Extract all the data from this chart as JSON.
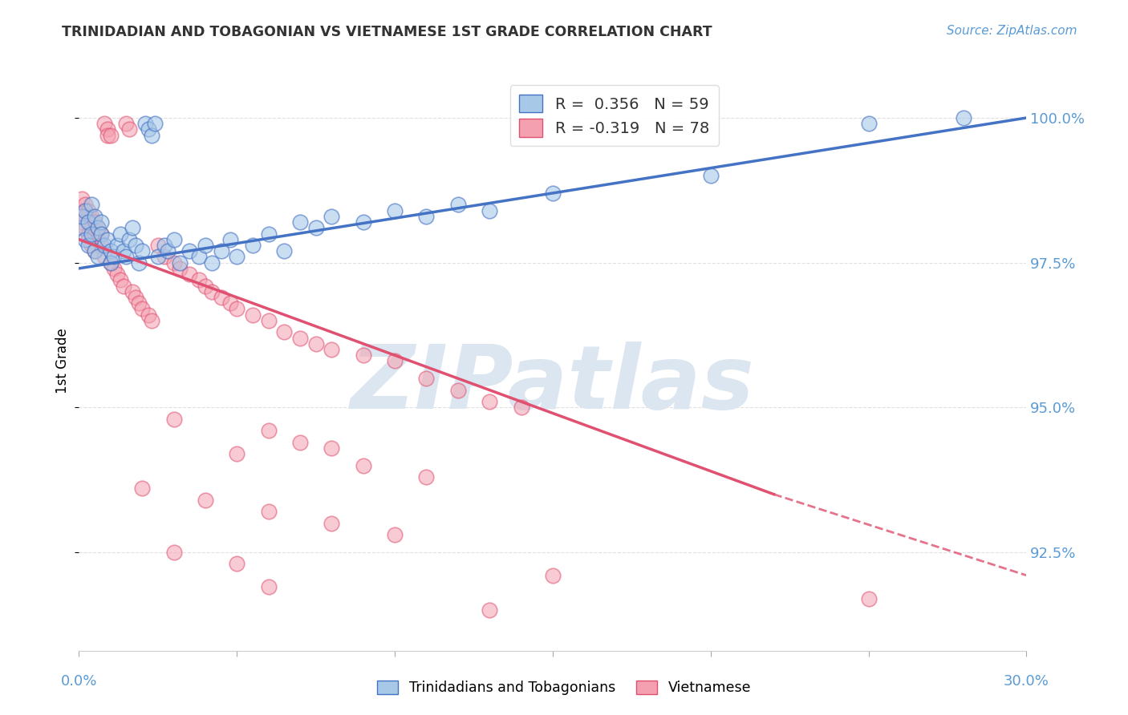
{
  "title": "TRINIDADIAN AND TOBAGONIAN VS VIETNAMESE 1ST GRADE CORRELATION CHART",
  "source": "Source: ZipAtlas.com",
  "ylabel": "1st Grade",
  "ytick_labels": [
    "100.0%",
    "97.5%",
    "95.0%",
    "92.5%"
  ],
  "ytick_values": [
    1.0,
    0.975,
    0.95,
    0.925
  ],
  "xmin": 0.0,
  "xmax": 0.3,
  "ymin": 0.908,
  "ymax": 1.008,
  "legend_blue_r": "R =  0.356",
  "legend_blue_n": "N = 59",
  "legend_pink_r": "R = -0.319",
  "legend_pink_n": "N = 78",
  "color_blue": "#a8c8e8",
  "color_pink": "#f4a0b0",
  "color_line_blue": "#4472c4",
  "color_line_pink": "#e05070",
  "color_axis_labels": "#5b9bd5",
  "color_grid": "#cccccc",
  "color_watermark": "#dce6f0",
  "watermark_text": "ZIPatlas",
  "blue_scatter": [
    [
      0.001,
      0.981
    ],
    [
      0.001,
      0.983
    ],
    [
      0.002,
      0.979
    ],
    [
      0.002,
      0.984
    ],
    [
      0.003,
      0.982
    ],
    [
      0.003,
      0.978
    ],
    [
      0.004,
      0.98
    ],
    [
      0.004,
      0.985
    ],
    [
      0.005,
      0.983
    ],
    [
      0.005,
      0.977
    ],
    [
      0.006,
      0.981
    ],
    [
      0.006,
      0.976
    ],
    [
      0.007,
      0.982
    ],
    [
      0.007,
      0.98
    ],
    [
      0.008,
      0.978
    ],
    [
      0.009,
      0.979
    ],
    [
      0.01,
      0.977
    ],
    [
      0.01,
      0.975
    ],
    [
      0.011,
      0.976
    ],
    [
      0.012,
      0.978
    ],
    [
      0.013,
      0.98
    ],
    [
      0.014,
      0.977
    ],
    [
      0.015,
      0.976
    ],
    [
      0.016,
      0.979
    ],
    [
      0.017,
      0.981
    ],
    [
      0.018,
      0.978
    ],
    [
      0.019,
      0.975
    ],
    [
      0.02,
      0.977
    ],
    [
      0.021,
      0.999
    ],
    [
      0.022,
      0.998
    ],
    [
      0.023,
      0.997
    ],
    [
      0.024,
      0.999
    ],
    [
      0.025,
      0.976
    ],
    [
      0.027,
      0.978
    ],
    [
      0.028,
      0.977
    ],
    [
      0.03,
      0.979
    ],
    [
      0.032,
      0.975
    ],
    [
      0.035,
      0.977
    ],
    [
      0.038,
      0.976
    ],
    [
      0.04,
      0.978
    ],
    [
      0.042,
      0.975
    ],
    [
      0.045,
      0.977
    ],
    [
      0.048,
      0.979
    ],
    [
      0.05,
      0.976
    ],
    [
      0.055,
      0.978
    ],
    [
      0.06,
      0.98
    ],
    [
      0.065,
      0.977
    ],
    [
      0.07,
      0.982
    ],
    [
      0.075,
      0.981
    ],
    [
      0.08,
      0.983
    ],
    [
      0.09,
      0.982
    ],
    [
      0.1,
      0.984
    ],
    [
      0.11,
      0.983
    ],
    [
      0.12,
      0.985
    ],
    [
      0.13,
      0.984
    ],
    [
      0.15,
      0.987
    ],
    [
      0.2,
      0.99
    ],
    [
      0.25,
      0.999
    ],
    [
      0.28,
      1.0
    ]
  ],
  "pink_scatter": [
    [
      0.001,
      0.984
    ],
    [
      0.001,
      0.986
    ],
    [
      0.001,
      0.982
    ],
    [
      0.002,
      0.985
    ],
    [
      0.002,
      0.983
    ],
    [
      0.002,
      0.981
    ],
    [
      0.003,
      0.984
    ],
    [
      0.003,
      0.98
    ],
    [
      0.003,
      0.979
    ],
    [
      0.004,
      0.983
    ],
    [
      0.004,
      0.981
    ],
    [
      0.004,
      0.978
    ],
    [
      0.005,
      0.982
    ],
    [
      0.005,
      0.98
    ],
    [
      0.005,
      0.977
    ],
    [
      0.006,
      0.981
    ],
    [
      0.006,
      0.979
    ],
    [
      0.007,
      0.98
    ],
    [
      0.007,
      0.978
    ],
    [
      0.008,
      0.976
    ],
    [
      0.008,
      0.999
    ],
    [
      0.009,
      0.998
    ],
    [
      0.009,
      0.997
    ],
    [
      0.01,
      0.997
    ],
    [
      0.01,
      0.975
    ],
    [
      0.011,
      0.974
    ],
    [
      0.012,
      0.973
    ],
    [
      0.013,
      0.972
    ],
    [
      0.014,
      0.971
    ],
    [
      0.015,
      0.999
    ],
    [
      0.016,
      0.998
    ],
    [
      0.017,
      0.97
    ],
    [
      0.018,
      0.969
    ],
    [
      0.019,
      0.968
    ],
    [
      0.02,
      0.967
    ],
    [
      0.022,
      0.966
    ],
    [
      0.023,
      0.965
    ],
    [
      0.025,
      0.978
    ],
    [
      0.027,
      0.976
    ],
    [
      0.03,
      0.975
    ],
    [
      0.032,
      0.974
    ],
    [
      0.035,
      0.973
    ],
    [
      0.038,
      0.972
    ],
    [
      0.04,
      0.971
    ],
    [
      0.042,
      0.97
    ],
    [
      0.045,
      0.969
    ],
    [
      0.048,
      0.968
    ],
    [
      0.05,
      0.967
    ],
    [
      0.055,
      0.966
    ],
    [
      0.06,
      0.965
    ],
    [
      0.065,
      0.963
    ],
    [
      0.07,
      0.962
    ],
    [
      0.075,
      0.961
    ],
    [
      0.08,
      0.96
    ],
    [
      0.09,
      0.959
    ],
    [
      0.1,
      0.958
    ],
    [
      0.11,
      0.955
    ],
    [
      0.12,
      0.953
    ],
    [
      0.13,
      0.951
    ],
    [
      0.14,
      0.95
    ],
    [
      0.03,
      0.948
    ],
    [
      0.06,
      0.946
    ],
    [
      0.07,
      0.944
    ],
    [
      0.08,
      0.943
    ],
    [
      0.05,
      0.942
    ],
    [
      0.09,
      0.94
    ],
    [
      0.11,
      0.938
    ],
    [
      0.02,
      0.936
    ],
    [
      0.04,
      0.934
    ],
    [
      0.06,
      0.932
    ],
    [
      0.08,
      0.93
    ],
    [
      0.1,
      0.928
    ],
    [
      0.03,
      0.925
    ],
    [
      0.05,
      0.923
    ],
    [
      0.15,
      0.921
    ],
    [
      0.06,
      0.919
    ],
    [
      0.25,
      0.917
    ],
    [
      0.13,
      0.915
    ]
  ]
}
